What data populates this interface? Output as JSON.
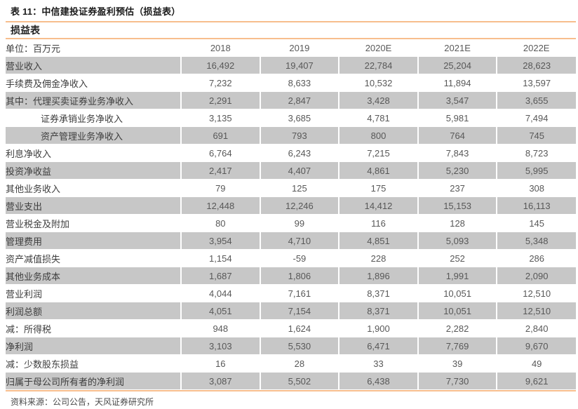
{
  "title": "表 11：中信建投证券盈利预估（损益表）",
  "table": {
    "section_header": "损益表",
    "unit_label": "单位：百万元",
    "columns": [
      "2018",
      "2019",
      "2020E",
      "2021E",
      "2022E"
    ],
    "rows": [
      {
        "label": "营业收入",
        "indent": 0,
        "shaded": true,
        "values": [
          "16,492",
          "19,407",
          "22,784",
          "25,204",
          "28,623"
        ]
      },
      {
        "label": "手续费及佣金净收入",
        "indent": 0,
        "shaded": false,
        "values": [
          "7,232",
          "8,633",
          "10,532",
          "11,894",
          "13,597"
        ]
      },
      {
        "label": "其中：代理买卖证券业务净收入",
        "indent": 0,
        "shaded": true,
        "values": [
          "2,291",
          "2,847",
          "3,428",
          "3,547",
          "3,655"
        ]
      },
      {
        "label": "证券承销业务净收入",
        "indent": 1,
        "shaded": false,
        "values": [
          "3,135",
          "3,685",
          "4,781",
          "5,981",
          "7,494"
        ]
      },
      {
        "label": "资产管理业务净收入",
        "indent": 1,
        "shaded": true,
        "values": [
          "691",
          "793",
          "800",
          "764",
          "745"
        ]
      },
      {
        "label": "利息净收入",
        "indent": 0,
        "shaded": false,
        "values": [
          "6,764",
          "6,243",
          "7,215",
          "7,843",
          "8,723"
        ]
      },
      {
        "label": "投资净收益",
        "indent": 0,
        "shaded": true,
        "values": [
          "2,417",
          "4,407",
          "4,861",
          "5,230",
          "5,995"
        ]
      },
      {
        "label": "其他业务收入",
        "indent": 0,
        "shaded": false,
        "values": [
          "79",
          "125",
          "175",
          "237",
          "308"
        ]
      },
      {
        "label": "营业支出",
        "indent": 0,
        "shaded": true,
        "values": [
          "12,448",
          "12,246",
          "14,412",
          "15,153",
          "16,113"
        ]
      },
      {
        "label": "营业税金及附加",
        "indent": 0,
        "shaded": false,
        "values": [
          "80",
          "99",
          "116",
          "128",
          "145"
        ]
      },
      {
        "label": "管理费用",
        "indent": 0,
        "shaded": true,
        "values": [
          "3,954",
          "4,710",
          "4,851",
          "5,093",
          "5,348"
        ]
      },
      {
        "label": "资产减值损失",
        "indent": 0,
        "shaded": false,
        "values": [
          "1,154",
          "-59",
          "228",
          "252",
          "286"
        ]
      },
      {
        "label": "其他业务成本",
        "indent": 0,
        "shaded": true,
        "values": [
          "1,687",
          "1,806",
          "1,896",
          "1,991",
          "2,090"
        ]
      },
      {
        "label": "营业利润",
        "indent": 0,
        "shaded": false,
        "values": [
          "4,044",
          "7,161",
          "8,371",
          "10,051",
          "12,510"
        ]
      },
      {
        "label": "利润总额",
        "indent": 0,
        "shaded": true,
        "values": [
          "4,051",
          "7,154",
          "8,371",
          "10,051",
          "12,510"
        ]
      },
      {
        "label": "减：所得税",
        "indent": 0,
        "shaded": false,
        "values": [
          "948",
          "1,624",
          "1,900",
          "2,282",
          "2,840"
        ]
      },
      {
        "label": "净利润",
        "indent": 0,
        "shaded": true,
        "values": [
          "3,103",
          "5,530",
          "6,471",
          "7,769",
          "9,670"
        ]
      },
      {
        "label": "减：少数股东损益",
        "indent": 0,
        "shaded": false,
        "values": [
          "16",
          "28",
          "33",
          "39",
          "49"
        ]
      },
      {
        "label": "归属于母公司所有者的净利润",
        "indent": 0,
        "shaded": true,
        "values": [
          "3,087",
          "5,502",
          "6,438",
          "7,730",
          "9,621"
        ]
      }
    ]
  },
  "footer": {
    "source": "资料来源：公司公告，天风证券研究所"
  },
  "colors": {
    "accent_orange": "#F7BE8D",
    "row_shade": "#C7C7C7"
  }
}
